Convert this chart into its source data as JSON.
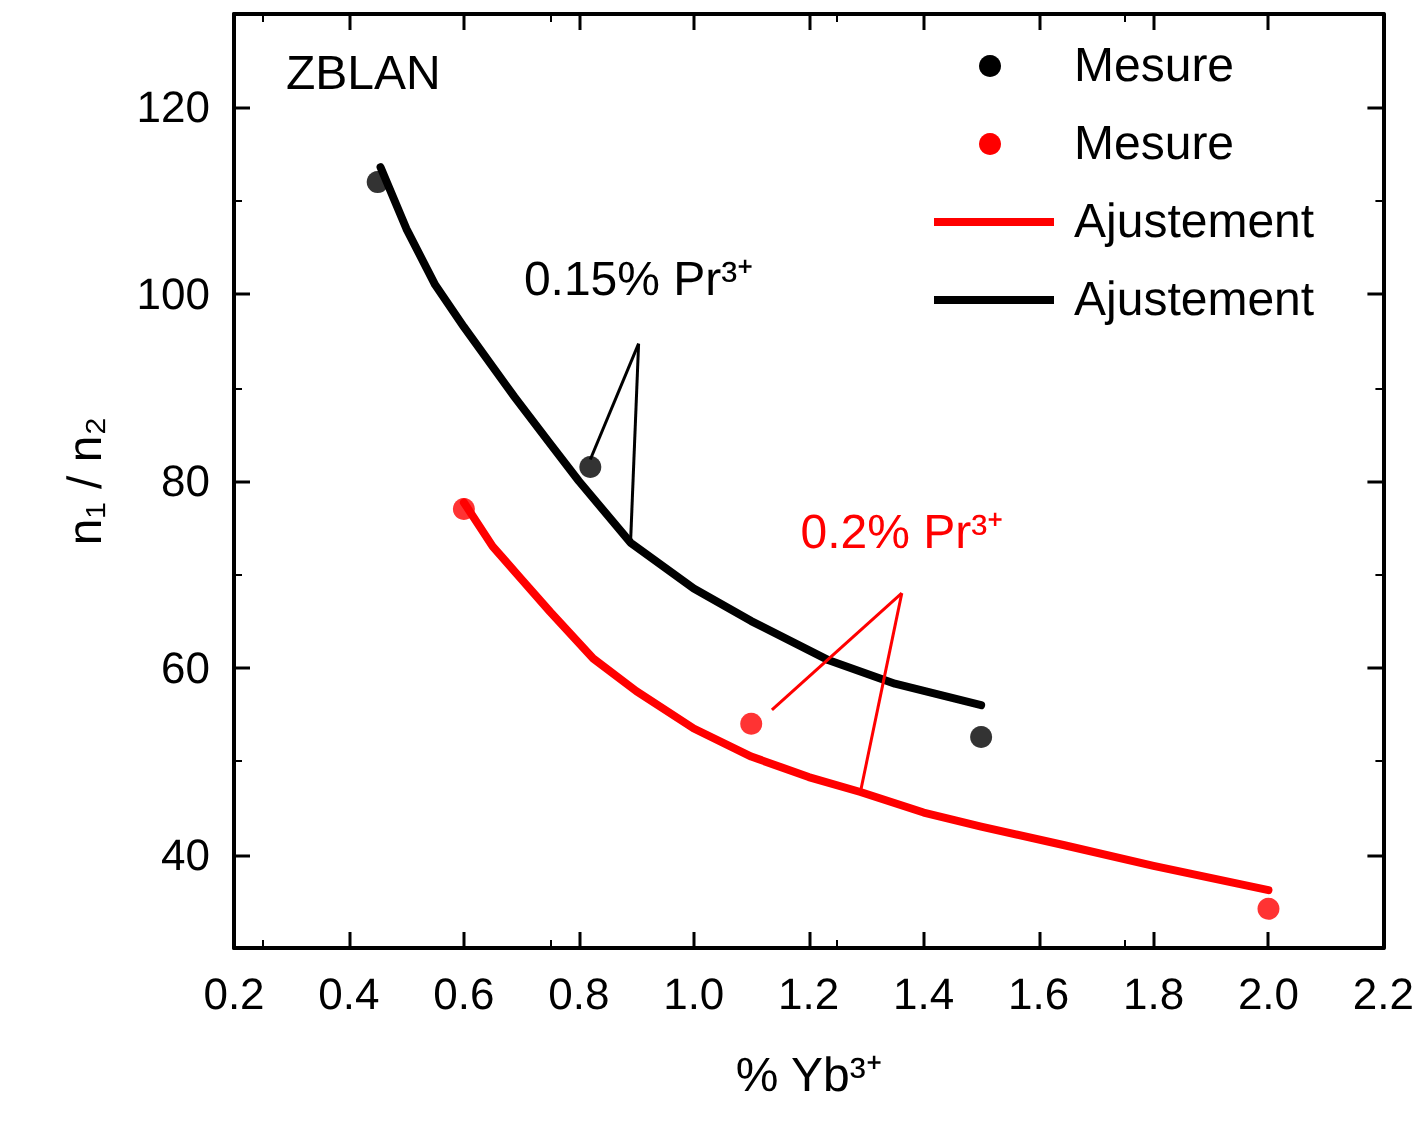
{
  "chart_data": {
    "type": "scatter",
    "xlabel": "% Yb³⁺",
    "ylabel": "n₁ / n₂",
    "xlim": [
      0.2,
      2.2
    ],
    "xticks": [
      0.2,
      0.4,
      0.6,
      0.8,
      {
        "value": 1,
        "label": "1.0"
      },
      1.2,
      1.4,
      1.6,
      1.8,
      {
        "value": 2,
        "label": "2.0"
      },
      2.2
    ],
    "ylim": [
      30,
      130
    ],
    "yticks": [
      40,
      60,
      80,
      100,
      120
    ],
    "grid": false,
    "legend": "top right",
    "annotations": [
      "ZBLAN",
      {
        "text": "0.15% Pr³⁺",
        "x": 0.89,
        "y": 73.4
      },
      {
        "text": "0.2% Pr³⁺",
        "x": 1.29,
        "y": 46.7
      }
    ],
    "series": [
      {
        "name": "Mesure",
        "marker": "circle",
        "color": "#000000",
        "x": [
          0.45,
          0.82,
          1.5
        ],
        "values": [
          112,
          81.5,
          52.6
        ]
      },
      {
        "name": "Mesure",
        "marker": "circle",
        "color": "#ff0000",
        "x": [
          0.6,
          1.1,
          2.0
        ],
        "values": [
          77,
          54,
          34.2
        ]
      },
      {
        "name": "Ajustement",
        "type": "line",
        "marker": "none",
        "line_style": "solid",
        "color": "#ff0000",
        "x": [
          0.6,
          0.65,
          0.7,
          0.75,
          0.825,
          0.9,
          1.0,
          1.1,
          1.2,
          1.29,
          1.4,
          1.5,
          1.645,
          1.8,
          2.0
        ],
        "values": [
          77.7,
          73,
          69.5,
          66,
          61,
          57.5,
          53.5,
          50.5,
          48.3,
          46.7,
          44.5,
          43,
          41,
          38.8,
          36.2
        ]
      },
      {
        "name": "Ajustement",
        "type": "line",
        "marker": "none",
        "line_style": "solid",
        "color": "#000000",
        "x": [
          0.455,
          0.5,
          0.55,
          0.6,
          0.688,
          0.75,
          0.8,
          0.89,
          1.0,
          1.1,
          1.235,
          1.35,
          1.5
        ],
        "values": [
          113.6,
          107,
          101,
          96.5,
          89,
          84,
          80,
          73.4,
          68.5,
          65,
          60.8,
          58.3,
          56
        ]
      }
    ]
  }
}
